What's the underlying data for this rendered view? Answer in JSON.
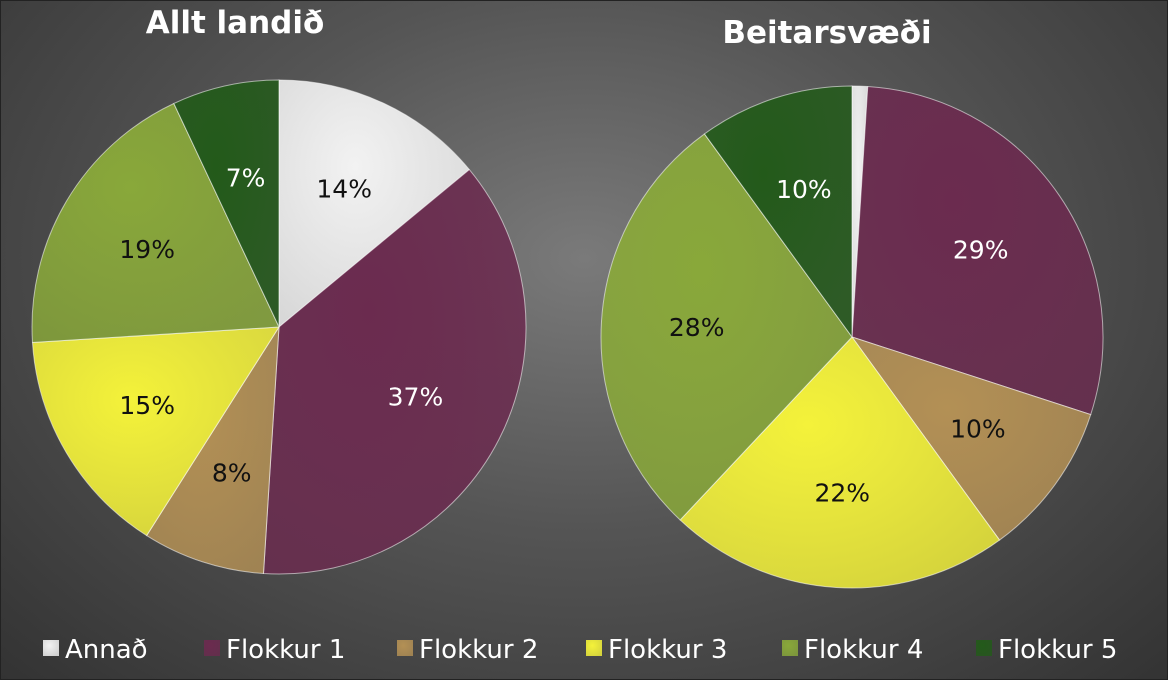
{
  "chart_data": [
    {
      "type": "pie",
      "title": "Allt landið",
      "categories": [
        "Annað",
        "Flokkur 1",
        "Flokkur 2",
        "Flokkur 3",
        "Flokkur 4",
        "Flokkur 5"
      ],
      "values": [
        14,
        37,
        8,
        15,
        19,
        7
      ],
      "labels": [
        "14%",
        "37%",
        "8%",
        "15%",
        "19%",
        "7%"
      ],
      "start_angle_deg": 0,
      "direction": "clockwise"
    },
    {
      "type": "pie",
      "title": "Beitarsvæði",
      "categories": [
        "Annað",
        "Flokkur 1",
        "Flokkur 2",
        "Flokkur 3",
        "Flokkur 4",
        "Flokkur 5"
      ],
      "values": [
        1,
        29,
        10,
        22,
        28,
        10
      ],
      "labels": [
        "",
        "29%",
        "10%",
        "22%",
        "28%",
        "10%"
      ],
      "start_angle_deg": 0,
      "direction": "clockwise"
    }
  ],
  "legend": {
    "placement": "bottom",
    "items": [
      {
        "label": "Annað",
        "color": "#f2f2f2"
      },
      {
        "label": "Flokkur 1",
        "color": "#6b2b4f"
      },
      {
        "label": "Flokkur 2",
        "color": "#b39055"
      },
      {
        "label": "Flokkur 3",
        "color": "#f4f23a"
      },
      {
        "label": "Flokkur 4",
        "color": "#89a83a"
      },
      {
        "label": "Flokkur 5",
        "color": "#235a1a"
      }
    ]
  },
  "colors": {
    "background": "#555555",
    "title_text": "#ffffff",
    "label_text_light": "#ffffff",
    "label_text_dark": "#111111"
  }
}
